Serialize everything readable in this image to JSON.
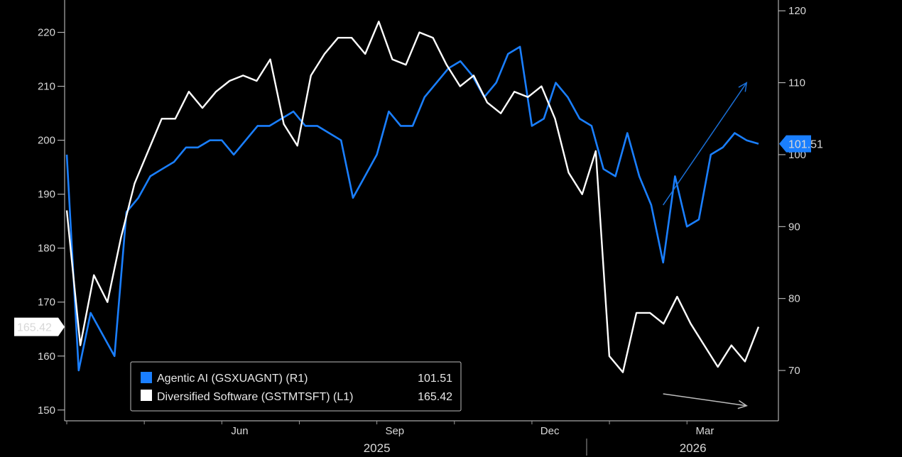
{
  "chart_data": {
    "type": "line",
    "title": "",
    "left_axis": {
      "ylim": [
        148,
        226
      ],
      "ticks": [
        150,
        160,
        170,
        180,
        190,
        200,
        210,
        220
      ],
      "tick_labels": [
        "150",
        "160",
        "170",
        "180",
        "190",
        "200",
        "210",
        "220"
      ]
    },
    "right_axis": {
      "ylim": [
        63,
        121.5
      ],
      "ticks": [
        70,
        80,
        90,
        100,
        110,
        120
      ],
      "tick_labels": [
        "70",
        "80",
        "90",
        "100",
        "110",
        "120"
      ]
    },
    "x_axis": {
      "month_labels": [
        {
          "label": "Jun",
          "week": 14.5
        },
        {
          "label": "Sep",
          "week": 27.5
        },
        {
          "label": "Dec",
          "week": 40.5
        },
        {
          "label": "Mar",
          "week": 53.5
        }
      ],
      "year_labels": [
        {
          "label": "2025",
          "week": 26
        },
        {
          "label": "2026",
          "week": 52.5
        }
      ],
      "year_divider_week": 46.3,
      "xlim": [
        0,
        58
      ]
    },
    "series": [
      {
        "name": "Agentic AI (GSXUAGNT) (R1)",
        "axis": "right",
        "color": "#1a7fff",
        "last_value": "101.51",
        "values": [
          100,
          70,
          78,
          75,
          72,
          92,
          94,
          97,
          98,
          99,
          101,
          101,
          102,
          102,
          100,
          102,
          104,
          104,
          105,
          106,
          104,
          104,
          103,
          102,
          94,
          97,
          100,
          106,
          104,
          104,
          108,
          110,
          112,
          113,
          111,
          108,
          110,
          114,
          115,
          104,
          105,
          110,
          108,
          105,
          104,
          98,
          97,
          103,
          97,
          93,
          85,
          97,
          90,
          91,
          100,
          101,
          103,
          102,
          101.51
        ]
      },
      {
        "name": "Diversified Software (GSTMTSFT) (L1)",
        "axis": "left",
        "color": "#ffffff",
        "last_value": "165.42",
        "values": [
          187,
          162,
          175,
          170,
          182,
          192,
          198,
          204,
          204,
          209,
          206,
          209,
          211,
          212,
          211,
          215,
          203,
          199,
          212,
          216,
          219,
          219,
          216,
          222,
          215,
          214,
          220,
          219,
          214,
          210,
          212,
          207,
          205,
          209,
          208,
          210,
          204,
          194,
          190,
          198,
          160,
          157,
          168,
          168,
          166,
          171,
          166,
          162,
          158,
          162,
          159,
          165.42
        ]
      }
    ],
    "legend": {
      "position": "bottom-left"
    },
    "annotations": [
      {
        "type": "arrow",
        "color": "#1a6fd6",
        "direction": "up-right",
        "from_week": 50,
        "to_week": 57,
        "axis": "right",
        "from_value": 93,
        "to_value": 110
      },
      {
        "type": "arrow",
        "color": "#bdbdbd",
        "direction": "down-right",
        "from_week": 50,
        "to_week": 57,
        "axis": "left",
        "from_value": 153,
        "to_value": 150.8
      }
    ]
  }
}
